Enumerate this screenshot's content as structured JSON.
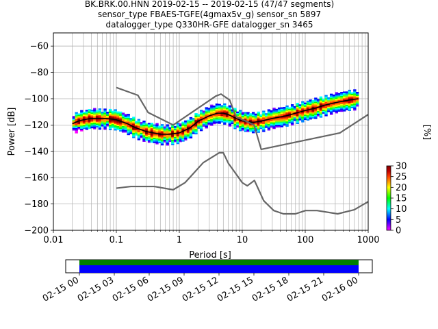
{
  "title": {
    "line1": "BK.BRK.00.HNN   2019-02-15 -- 2019-02-15  (47/47 segments)",
    "line2": "sensor_type FBAES-TGFE(4gmax5v_g) sensor_sn 5897",
    "line3": "datalogger_type Q330HR-GFE datalogger_sn 3465"
  },
  "colorbar": {
    "label": "[%]",
    "ticks": [
      "0",
      "5",
      "10",
      "15",
      "20",
      "25",
      "30"
    ],
    "range": [
      0,
      30
    ],
    "colors": [
      "#ffffff",
      "#ff00ff",
      "#7f00ff",
      "#0000ff",
      "#0080ff",
      "#00ffff",
      "#00ff80",
      "#00ff00",
      "#80ff00",
      "#ffff00",
      "#ffa000",
      "#ff4000",
      "#c00000",
      "#800000"
    ]
  },
  "timeline": {
    "ticks": [
      "02-15 00",
      "02-15 03",
      "02-15 06",
      "02-15 09",
      "02-15 12",
      "02-15 15",
      "02-15 18",
      "02-15 21",
      "02-16 00"
    ],
    "coverage_colors": {
      "data": "#0000ff",
      "overlap": "#008000"
    },
    "coverage_fraction": [
      0.0,
      1.0
    ]
  },
  "chart_data": {
    "type": "heatmap",
    "title": "BK.BRK.00.HNN   2019-02-15 -- 2019-02-15  (47/47 segments)",
    "xlabel": "Period [s]",
    "ylabel": "Power [dB]",
    "xscale": "log",
    "xlim": [
      0.01,
      1000
    ],
    "ylim": [
      -200,
      -50
    ],
    "x_tick_labels": [
      "0.01",
      "0.1",
      "1",
      "10",
      "100",
      "1000"
    ],
    "y_tick_labels": [
      "−60",
      "−80",
      "−100",
      "−120",
      "−140",
      "−160",
      "−180",
      "−200"
    ],
    "y_ticks": [
      -60,
      -80,
      -100,
      -120,
      -140,
      -160,
      -180,
      -200
    ],
    "grid": true,
    "series": [
      {
        "role": "mean",
        "color": "#000000",
        "x": [
          0.02,
          0.025,
          0.03,
          0.04,
          0.05,
          0.07,
          0.1,
          0.15,
          0.2,
          0.3,
          0.5,
          0.7,
          1.0,
          1.5,
          2.0,
          3.0,
          4.0,
          5.0,
          6.0,
          8.0,
          10,
          15,
          20,
          30,
          50,
          70,
          100,
          150,
          200,
          300,
          500,
          700
        ],
        "y": [
          -119,
          -117,
          -116,
          -115,
          -115,
          -115,
          -116,
          -119,
          -122,
          -125,
          -127,
          -127,
          -126,
          -122,
          -117,
          -113,
          -111,
          -111,
          -112,
          -115,
          -117,
          -118,
          -117,
          -115,
          -113,
          -111,
          -109,
          -107,
          -105,
          -103,
          -101,
          -100
        ]
      },
      {
        "role": "nhnm",
        "color": "#666666",
        "x": [
          0.1,
          0.22,
          0.32,
          0.8,
          3.8,
          4.6,
          6.3,
          7.9,
          15.4,
          20,
          354.8,
          1000
        ],
        "y": [
          -91.5,
          -97.4,
          -110.5,
          -120,
          -98,
          -96.5,
          -101,
          -113.5,
          -120,
          -138.5,
          -126,
          -112
        ]
      },
      {
        "role": "nlnm",
        "color": "#666666",
        "x": [
          0.1,
          0.17,
          0.4,
          0.8,
          1.24,
          2.4,
          4.3,
          5.0,
          6.0,
          10,
          12,
          15.6,
          21.9,
          31.6,
          45,
          70,
          101,
          154,
          328,
          600,
          1000
        ],
        "y": [
          -168,
          -166.7,
          -166.7,
          -169.2,
          -163.7,
          -148.6,
          -141.1,
          -141.1,
          -149,
          -163.8,
          -166.2,
          -162.1,
          -177.5,
          -185,
          -187.5,
          -187.5,
          -185,
          -185,
          -187.5,
          -184.4,
          -178.2
        ]
      }
    ]
  }
}
